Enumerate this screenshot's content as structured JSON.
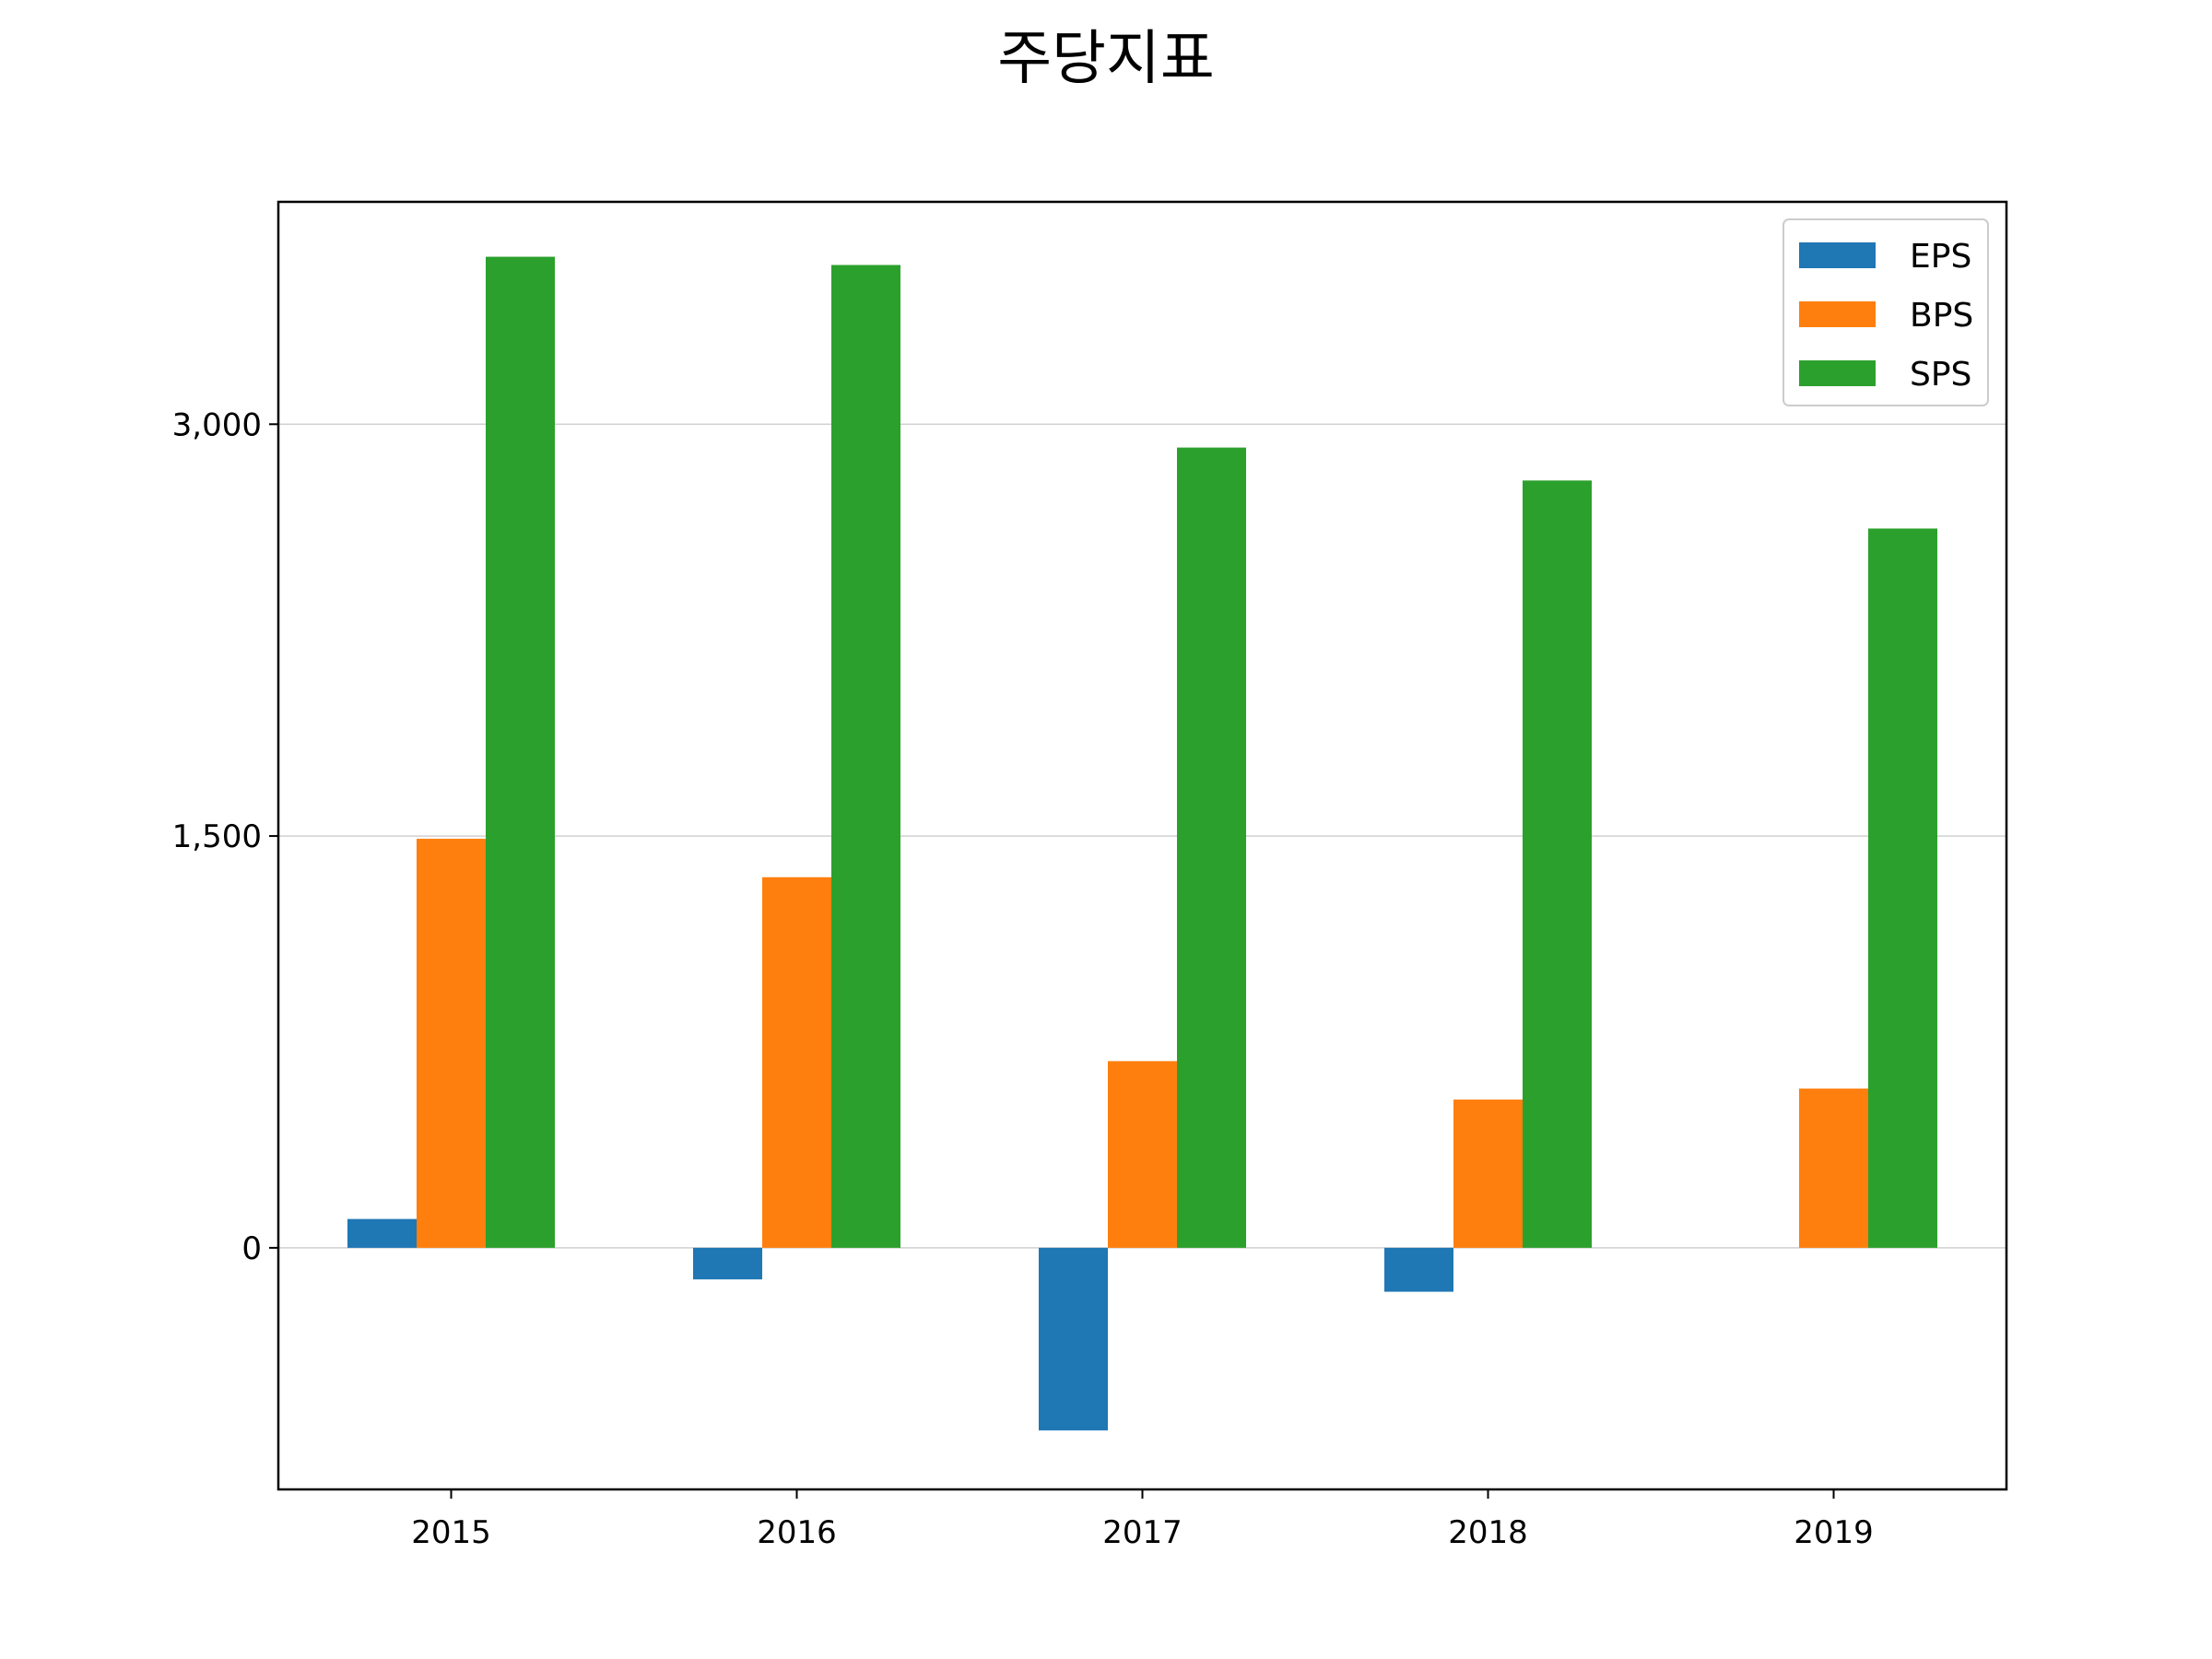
{
  "chart_data": {
    "type": "bar",
    "title": "주당지표",
    "xlabel": "",
    "ylabel": "",
    "categories": [
      "2015",
      "2016",
      "2017",
      "2018",
      "2019"
    ],
    "series": [
      {
        "name": "EPS",
        "color": "#1f77b4",
        "values": [
          105,
          -115,
          -665,
          -160,
          0
        ]
      },
      {
        "name": "BPS",
        "color": "#ff7f0e",
        "values": [
          1490,
          1350,
          680,
          540,
          580
        ]
      },
      {
        "name": "SPS",
        "color": "#2ca02c",
        "values": [
          3610,
          3580,
          2915,
          2795,
          2620
        ]
      }
    ],
    "yticks": [
      0,
      1500,
      3000
    ],
    "ytick_labels": [
      "0",
      "1,500",
      "3,000"
    ],
    "ylim": [
      -880,
      3810
    ],
    "grid": "y",
    "legend_position": "top-right"
  }
}
